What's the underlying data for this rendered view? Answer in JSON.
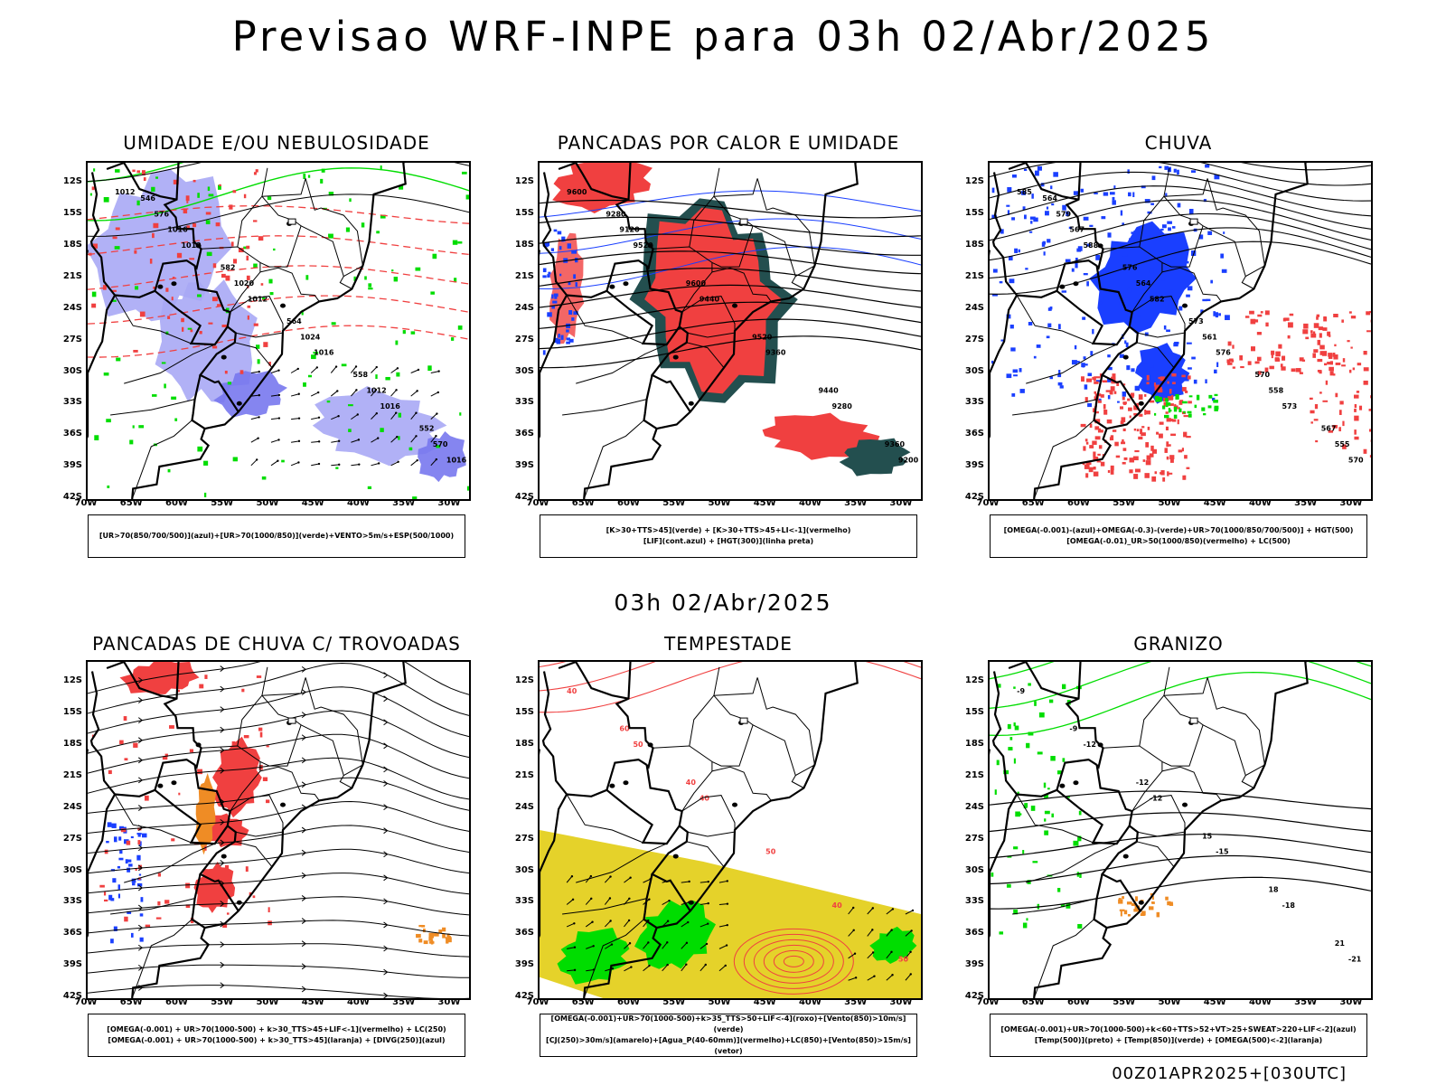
{
  "main_title": "Previsao WRF-INPE  para 03h 02/Abr/2025",
  "subtitle": "03h 02/Abr/2025",
  "footer": "00Z01APR2025+[030UTC]",
  "axes": {
    "lat_labels": [
      "12S",
      "15S",
      "18S",
      "21S",
      "24S",
      "27S",
      "30S",
      "33S",
      "36S",
      "39S",
      "42S"
    ],
    "lon_labels": [
      "70W",
      "65W",
      "60W",
      "55W",
      "50W",
      "45W",
      "40W",
      "35W",
      "30W"
    ]
  },
  "panels": [
    {
      "title": "UMIDADE E/OU NEBULOSIDADE",
      "legend": [
        "[UR>70(850/700/500)](azul)+[UR>70(1000/850)](verde)+VENTO>5m/s+ESP(500/1000)"
      ],
      "contour_labels": [
        "1012",
        "1012",
        "1012",
        "1016",
        "1016",
        "1016",
        "1016",
        "1020",
        "1024",
        "1012",
        "570",
        "576",
        "582",
        "564",
        "558",
        "552",
        "546"
      ]
    },
    {
      "title": "PANCADAS POR CALOR E UMIDADE",
      "legend": [
        "[K>30+TTS>45](verde) + [K>30+TTS>45+LI<-1](vermelho)",
        "[LIF](cont.azul) + [HGT(300)](linha preta)"
      ],
      "contour_labels": [
        "9600",
        "9520",
        "9440",
        "9360",
        "9280",
        "9200",
        "9120",
        "9600",
        "9520",
        "9440",
        "9360",
        "9280"
      ]
    },
    {
      "title": "CHUVA",
      "legend": [
        "[OMEGA(-0.001)-(azul)+OMEGA(-0.3)-(verde)+UR>70(1000/850/700/500)] + HGT(500)",
        "[OMEGA(-0.01)_UR>50(1000/850)(vermelho) + LC(500)"
      ],
      "contour_labels": [
        "585",
        "588",
        "582",
        "576",
        "573",
        "570",
        "567",
        "564",
        "561",
        "558",
        "555",
        "579",
        "576",
        "573",
        "570",
        "567",
        "564"
      ]
    },
    {
      "title": "PANCADAS DE CHUVA C/ TROVOADAS",
      "legend": [
        "[OMEGA(-0.001) + UR>70(1000-500) + k>30_TTS>45+LIF<-1](vermelho) + LC(250)",
        "[OMEGA(-0.001) + UR>70(1000-500) + k>30_TTS>45](laranja) + [DIVG(250)](azul)"
      ],
      "contour_labels": []
    },
    {
      "title": "TEMPESTADE",
      "legend": [
        "[OMEGA(-0.001)+UR>70(1000-500)+k>35_TTS>50+LIF<-4](roxo)+[Vento(850)>10m/s](verde)",
        "[CJ(250)>30m/s](amarelo)+[Agua_P(40-60mm)](vermelho)+LC(850)+[Vento(850)>15m/s](vetor)"
      ],
      "contour_labels": [
        "40",
        "50",
        "40",
        "50",
        "40",
        "50",
        "60",
        "40"
      ]
    },
    {
      "title": "GRANIZO",
      "legend": [
        "[OMEGA(-0.001)+UR>70(1000-500)+k<60+TTS>52+VT>25+SWEAT>220+LIF<-2](azul)",
        "[Temp(500)](preto) + [Temp(850)](verde) + [OMEGA(500)<-2](laranja)"
      ],
      "contour_labels": [
        "-9",
        "-12",
        "-12",
        "-15",
        "-18",
        "-21",
        "-9",
        "-12",
        "15",
        "18",
        "21"
      ]
    }
  ],
  "colors": {
    "red": "#f04040",
    "green": "#00dd00",
    "blue": "#1a3fff",
    "lightblue": "#a8a8f5",
    "midblue": "#7878ee",
    "darkteal": "#234f4f",
    "yellow": "#e5d22a",
    "orange": "#ef8c25",
    "coast": "#000000"
  }
}
